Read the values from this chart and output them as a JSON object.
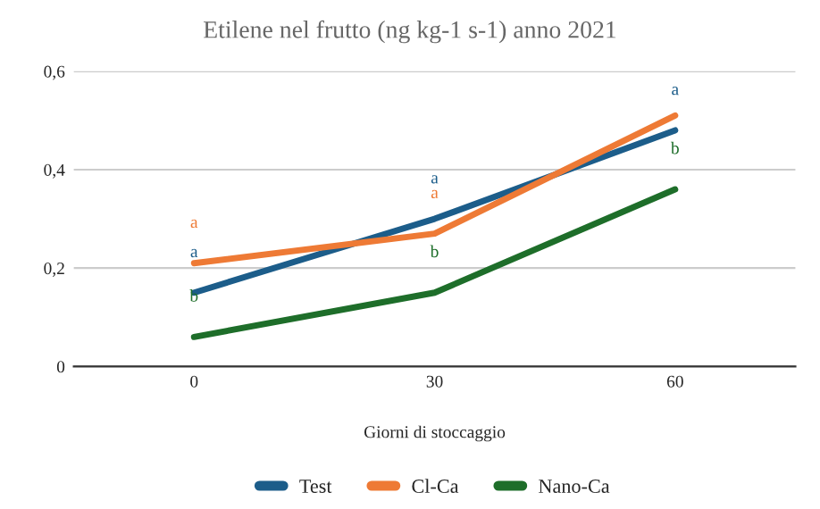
{
  "chart_data": {
    "type": "line",
    "title": "Etilene nel frutto (ng kg-1 s-1) anno 2021",
    "xlabel": "Giorni di stoccaggio",
    "categories": [
      "0",
      "30",
      "60"
    ],
    "series": [
      {
        "name": "Test",
        "color": "#1c5d8a",
        "values": [
          0.15,
          0.3,
          0.48
        ]
      },
      {
        "name": "Cl-Ca",
        "color": "#ee7a35",
        "values": [
          0.21,
          0.27,
          0.51
        ]
      },
      {
        "name": "Nano-Ca",
        "color": "#1e6e2a",
        "values": [
          0.06,
          0.15,
          0.36
        ]
      }
    ],
    "annotations": [
      {
        "text": "a",
        "x": "0",
        "y": 0.21
      },
      {
        "text": "a",
        "x": "0",
        "y": 0.15
      },
      {
        "text": "b",
        "x": "0",
        "y": 0.06
      },
      {
        "text": "a",
        "x": "30",
        "y": 0.3
      },
      {
        "text": "a",
        "x": "30",
        "y": 0.27
      },
      {
        "text": "b",
        "x": "30",
        "y": 0.15
      },
      {
        "text": "a",
        "x": "60",
        "y": 0.48
      },
      {
        "text": "b",
        "x": "60",
        "y": 0.36
      }
    ],
    "ylim": [
      0,
      0.6
    ],
    "yticks": [
      {
        "value": 0,
        "label": "0"
      },
      {
        "value": 0.2,
        "label": "0,2"
      },
      {
        "value": 0.4,
        "label": "0,4"
      },
      {
        "value": 0.6,
        "label": "0,6"
      }
    ],
    "grid": "y",
    "legend": "bottom",
    "marker": "none",
    "line_style": "solid"
  }
}
